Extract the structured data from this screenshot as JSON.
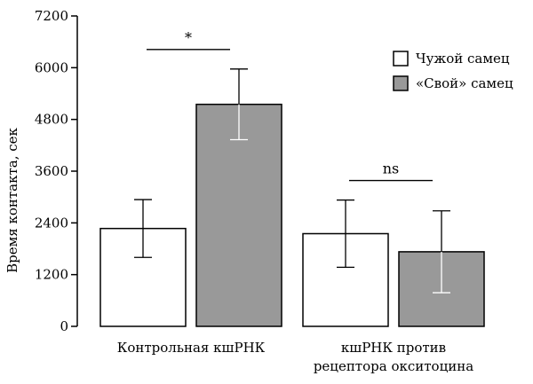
{
  "chart_data": {
    "type": "bar",
    "ylabel": "Время контакта, сек",
    "ylim": [
      0,
      7200
    ],
    "yticks": [
      "0",
      "1200",
      "2400",
      "3600",
      "4800",
      "6000",
      "7200"
    ],
    "groups": [
      {
        "label_lines": [
          "Контрольная кшРНК"
        ]
      },
      {
        "label_lines": [
          "кшРНК против",
          "рецептора окситоцина"
        ]
      }
    ],
    "series": [
      {
        "name": "Чужой самец",
        "color": "#ffffff",
        "values": [
          2270,
          2150
        ],
        "errors": [
          670,
          780
        ]
      },
      {
        "name": "«Свой» самец",
        "color": "#999999",
        "values": [
          5150,
          1730
        ],
        "errors": [
          820,
          950
        ]
      }
    ],
    "significance": [
      "*",
      "ns"
    ],
    "legend_position": "top-right",
    "grid": false
  }
}
